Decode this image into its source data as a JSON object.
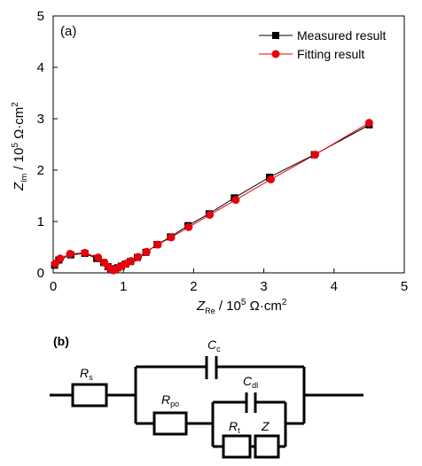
{
  "chart_data": {
    "type": "scatter",
    "panel_label": "(a)",
    "xlabel": {
      "main": "Z",
      "sub": "Re",
      "unit": " / 10",
      "exp": "5",
      "tail": " Ω·cm",
      "tail_exp": "2"
    },
    "ylabel": {
      "main": "Z",
      "sub": "Im",
      "unit": " / 10",
      "exp": "5",
      "tail": " Ω·cm",
      "tail_exp": "2"
    },
    "xlim": [
      0,
      5
    ],
    "ylim": [
      0,
      5
    ],
    "xticks": [
      "0",
      "1",
      "2",
      "3",
      "4",
      "5"
    ],
    "yticks": [
      "0",
      "1",
      "2",
      "3",
      "4",
      "5"
    ],
    "grid": false,
    "legend_position": "top-right",
    "series": [
      {
        "name": "Measured result",
        "color": "#000000",
        "marker": "square",
        "x": [
          0.02,
          0.08,
          0.25,
          0.45,
          0.62,
          0.72,
          0.78,
          0.82,
          0.85,
          0.88,
          0.92,
          0.97,
          1.03,
          1.1,
          1.2,
          1.32,
          1.48,
          1.67,
          1.92,
          2.22,
          2.58,
          3.08,
          3.72,
          4.5
        ],
        "y": [
          0.15,
          0.25,
          0.35,
          0.38,
          0.28,
          0.2,
          0.12,
          0.08,
          0.06,
          0.07,
          0.1,
          0.13,
          0.17,
          0.22,
          0.3,
          0.4,
          0.55,
          0.7,
          0.92,
          1.15,
          1.46,
          1.86,
          2.3,
          2.88
        ]
      },
      {
        "name": "Fitting result",
        "color": "#e8000b",
        "marker": "circle",
        "x": [
          0.03,
          0.1,
          0.24,
          0.45,
          0.64,
          0.73,
          0.79,
          0.83,
          0.86,
          0.89,
          0.93,
          0.98,
          1.04,
          1.11,
          1.21,
          1.33,
          1.49,
          1.68,
          1.93,
          2.23,
          2.6,
          3.1,
          3.73,
          4.5
        ],
        "y": [
          0.18,
          0.28,
          0.37,
          0.39,
          0.3,
          0.2,
          0.11,
          0.06,
          0.05,
          0.07,
          0.1,
          0.14,
          0.18,
          0.23,
          0.31,
          0.41,
          0.55,
          0.69,
          0.89,
          1.13,
          1.42,
          1.82,
          2.3,
          2.92
        ]
      }
    ]
  },
  "circuit": {
    "panel_label": "(b)",
    "rs": {
      "main": "R",
      "sub": "s"
    },
    "cc": {
      "main": "C",
      "sub": "c"
    },
    "rpo": {
      "main": "R",
      "sub": "po"
    },
    "cdl": {
      "main": "C",
      "sub": "dl"
    },
    "rt": {
      "main": "R",
      "sub": "t"
    },
    "z": {
      "main": "Z"
    }
  }
}
